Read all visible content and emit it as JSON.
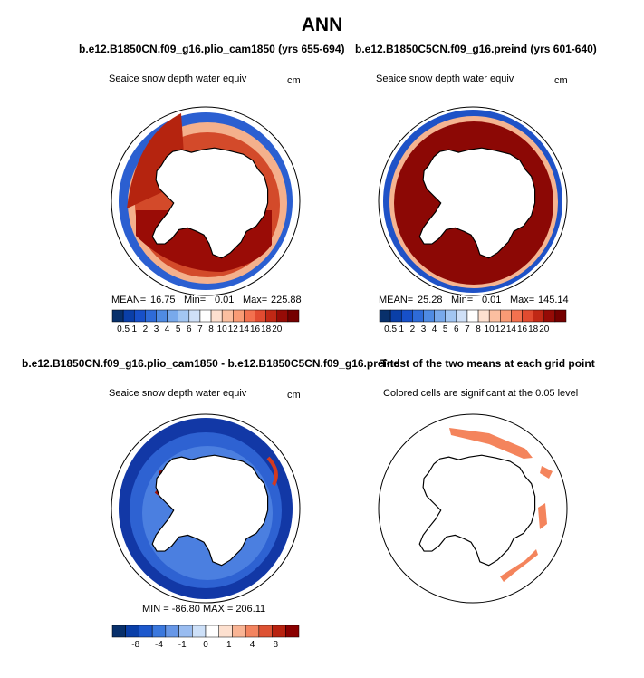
{
  "page": {
    "title": "ANN"
  },
  "colors": {
    "red_scale": [
      "#08306b",
      "#0a3fa8",
      "#1750c9",
      "#2e6bd8",
      "#4f8be3",
      "#78a9eb",
      "#a2c6f2",
      "#cfe0f7",
      "#ffffff",
      "#fde0cf",
      "#fbbfa0",
      "#f99b75",
      "#f3714f",
      "#e14b30",
      "#c02815",
      "#960b06",
      "#750000"
    ],
    "diff_scale": [
      "#08306b",
      "#0a3fa8",
      "#1d58cc",
      "#3b78dd",
      "#6797e7",
      "#99bcf0",
      "#cde0f8",
      "#ffffff",
      "#fde0cf",
      "#f9b494",
      "#f3845f",
      "#dd5233",
      "#b8220f",
      "#8a0000"
    ],
    "significant": "#f4845c",
    "land": "#ffffff"
  },
  "chart_data": [
    {
      "type": "heatmap",
      "panel": "top-left",
      "case": "b.e12.B1850CN.f09_g16.plio_cam1850 (yrs 655-694)",
      "field": "Seaice snow depth water equiv",
      "units": "cm",
      "stats": {
        "mean_label": "MEAN=",
        "mean": "16.75",
        "min_label": "Min=",
        "min": "0.01",
        "max_label": "Max=",
        "max": "225.88"
      },
      "colorbar": {
        "labels": [
          "0.5",
          "1",
          "2",
          "3",
          "4",
          "5",
          "6",
          "7",
          "8",
          "10",
          "12",
          "14",
          "16",
          "18",
          "20"
        ]
      }
    },
    {
      "type": "heatmap",
      "panel": "top-right",
      "case": "b.e12.B1850C5CN.f09_g16.preind (yrs 601-640)",
      "field": "Seaice snow depth water equiv",
      "units": "cm",
      "stats": {
        "mean_label": "MEAN=",
        "mean": "25.28",
        "min_label": "Min=",
        "min": "0.01",
        "max_label": "Max=",
        "max": "145.14"
      },
      "colorbar": {
        "labels": [
          "0.5",
          "1",
          "2",
          "3",
          "4",
          "5",
          "6",
          "7",
          "8",
          "10",
          "12",
          "14",
          "16",
          "18",
          "20"
        ]
      }
    },
    {
      "type": "heatmap",
      "panel": "bottom-left",
      "case": "b.e12.B1850CN.f09_g16.plio_cam1850 - b.e12.B1850C5CN.f09_g16.preind",
      "field": "Seaice snow depth water equiv",
      "units": "cm",
      "stats": {
        "text": "MIN = -86.80  MAX = 206.11"
      },
      "colorbar": {
        "labels": [
          "-8",
          "-4",
          "-1",
          "0",
          "1",
          "4",
          "8"
        ]
      }
    },
    {
      "type": "heatmap",
      "panel": "bottom-right",
      "case": "T-test of the two means at each grid point",
      "field": "Colored cells are significant at the 0.05 level"
    }
  ]
}
